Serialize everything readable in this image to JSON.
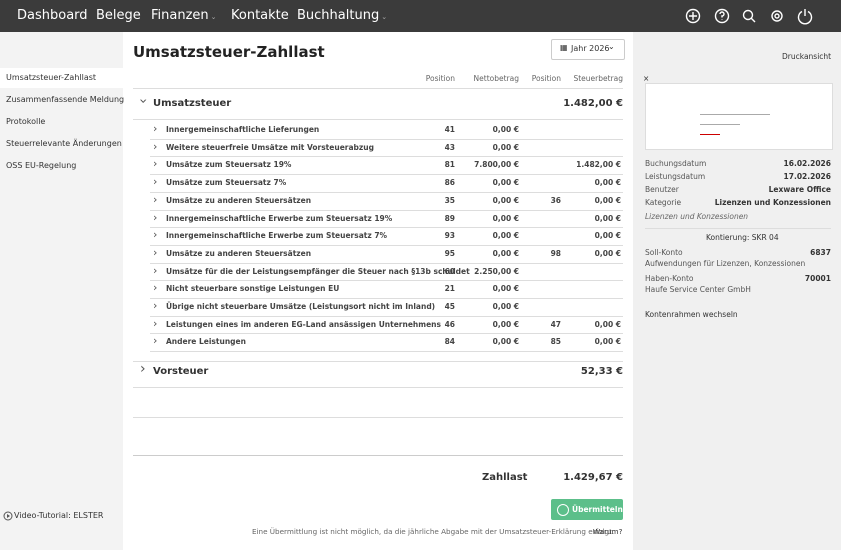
{
  "nav": {
    "items": [
      "Dashboard",
      "Belege",
      "Finanzen",
      "Kontakte",
      "Buchhaltung"
    ]
  },
  "sidebar": {
    "items": [
      "Umsatzsteuer-Zahllast",
      "Zusammenfassende Meldung",
      "Protokolle",
      "Steuerrelevante Änderungen",
      "OSS EU-Regelung"
    ],
    "footer": "Video-Tutorial: ELSTER"
  },
  "main": {
    "title": "Umsatzsteuer-Zahllast",
    "year": "Jahr 2026",
    "columns": [
      "Position",
      "Nettobetrag",
      "Position",
      "Steuerbetrag"
    ],
    "sections": [
      {
        "name": "Umsatzsteuer",
        "total": "1.482,00 €",
        "rows": [
          {
            "label": "Innergemeinschaftliche Lieferungen",
            "position": 41,
            "net": "0,00 €"
          },
          {
            "label": "Weitere steuerfreie Umsätze mit Vorsteuerabzug",
            "position": 43,
            "net": "0,00 €"
          },
          {
            "label": "Umsätze zum Steuersatz 19%",
            "position": 81,
            "net": "7.800,00 €",
            "tax": "1.482,00 €"
          },
          {
            "label": "Umsätze zum Steuersatz 7%",
            "position": 86,
            "net": "0,00 €",
            "tax": "0,00 €"
          },
          {
            "label": "Umsätze zu anderen Steuersätzen",
            "position": 35,
            "net": "0,00 €",
            "position2": 36,
            "tax": "0,00 €"
          },
          {
            "label": "Innergemeinschaftliche Erwerbe zum Steuersatz 19%",
            "position": 89,
            "net": "0,00 €",
            "tax": "0,00 €"
          },
          {
            "label": "Innergemeinschaftliche Erwerbe zum Steuersatz 7%",
            "position": 93,
            "net": "0,00 €",
            "tax": "0,00 €"
          },
          {
            "label": "Umsätze zu anderen Steuersätzen",
            "position": 95,
            "net": "0,00 €",
            "position2": 98,
            "tax": "0,00 €"
          },
          {
            "label": "Umsätze für die der Leistungsempfänger die Steuer nach §13b schuldet",
            "position": 60,
            "net": "2.250,00 €"
          },
          {
            "label": "Nicht steuerbare sonstige Leistungen EU",
            "position": 21,
            "net": "0,00 €"
          },
          {
            "label": "Übrige nicht steuerbare Umsätze (Leistungsort nicht im Inland)",
            "position": 45,
            "net": "0,00 €"
          },
          {
            "label": "Leistungen eines im anderen EG-Land ansässigen Unternehmens",
            "position": 46,
            "net": "0,00 €",
            "position2": 47,
            "tax": "0,00 €"
          },
          {
            "label": "Andere Leistungen",
            "position": 84,
            "net": "0,00 €",
            "position2": 85,
            "tax": "0,00 €"
          }
        ]
      },
      {
        "name": "Vorsteuer",
        "total": "52,33 €",
        "rows": []
      }
    ],
    "result_label": "Zahllast",
    "result_value": "1.429,67 €",
    "button": "Übermitteln",
    "note": "Eine Übermittlung ist nicht möglich, da die jährliche Abgabe mit der Umsatzsteuer-Erklärung erfolgt.",
    "note_link": "Warum?"
  },
  "panel": {
    "print": "Druckansicht",
    "details": [
      [
        "Buchungsdatum",
        "16.02.2026"
      ],
      [
        "Leistungsdatum",
        "17.02.2026"
      ],
      [
        "Benutzer",
        "Lexware Office"
      ],
      [
        "Kategorie",
        "Lizenzen und Konzessionen"
      ]
    ],
    "category_note": "Lizenzen und Konzessionen",
    "booking_title": "Kontierung: SKR 04",
    "debit_label": "Soll-Konto",
    "debit_account": "6837",
    "debit_desc": "Aufwendungen für Lizenzen, Konzessionen",
    "credit_label": "Haben-Konto",
    "credit_account": "70001",
    "credit_desc": "Haufe Service Center GmbH",
    "switch": "Kontenrahmen wechseln"
  }
}
